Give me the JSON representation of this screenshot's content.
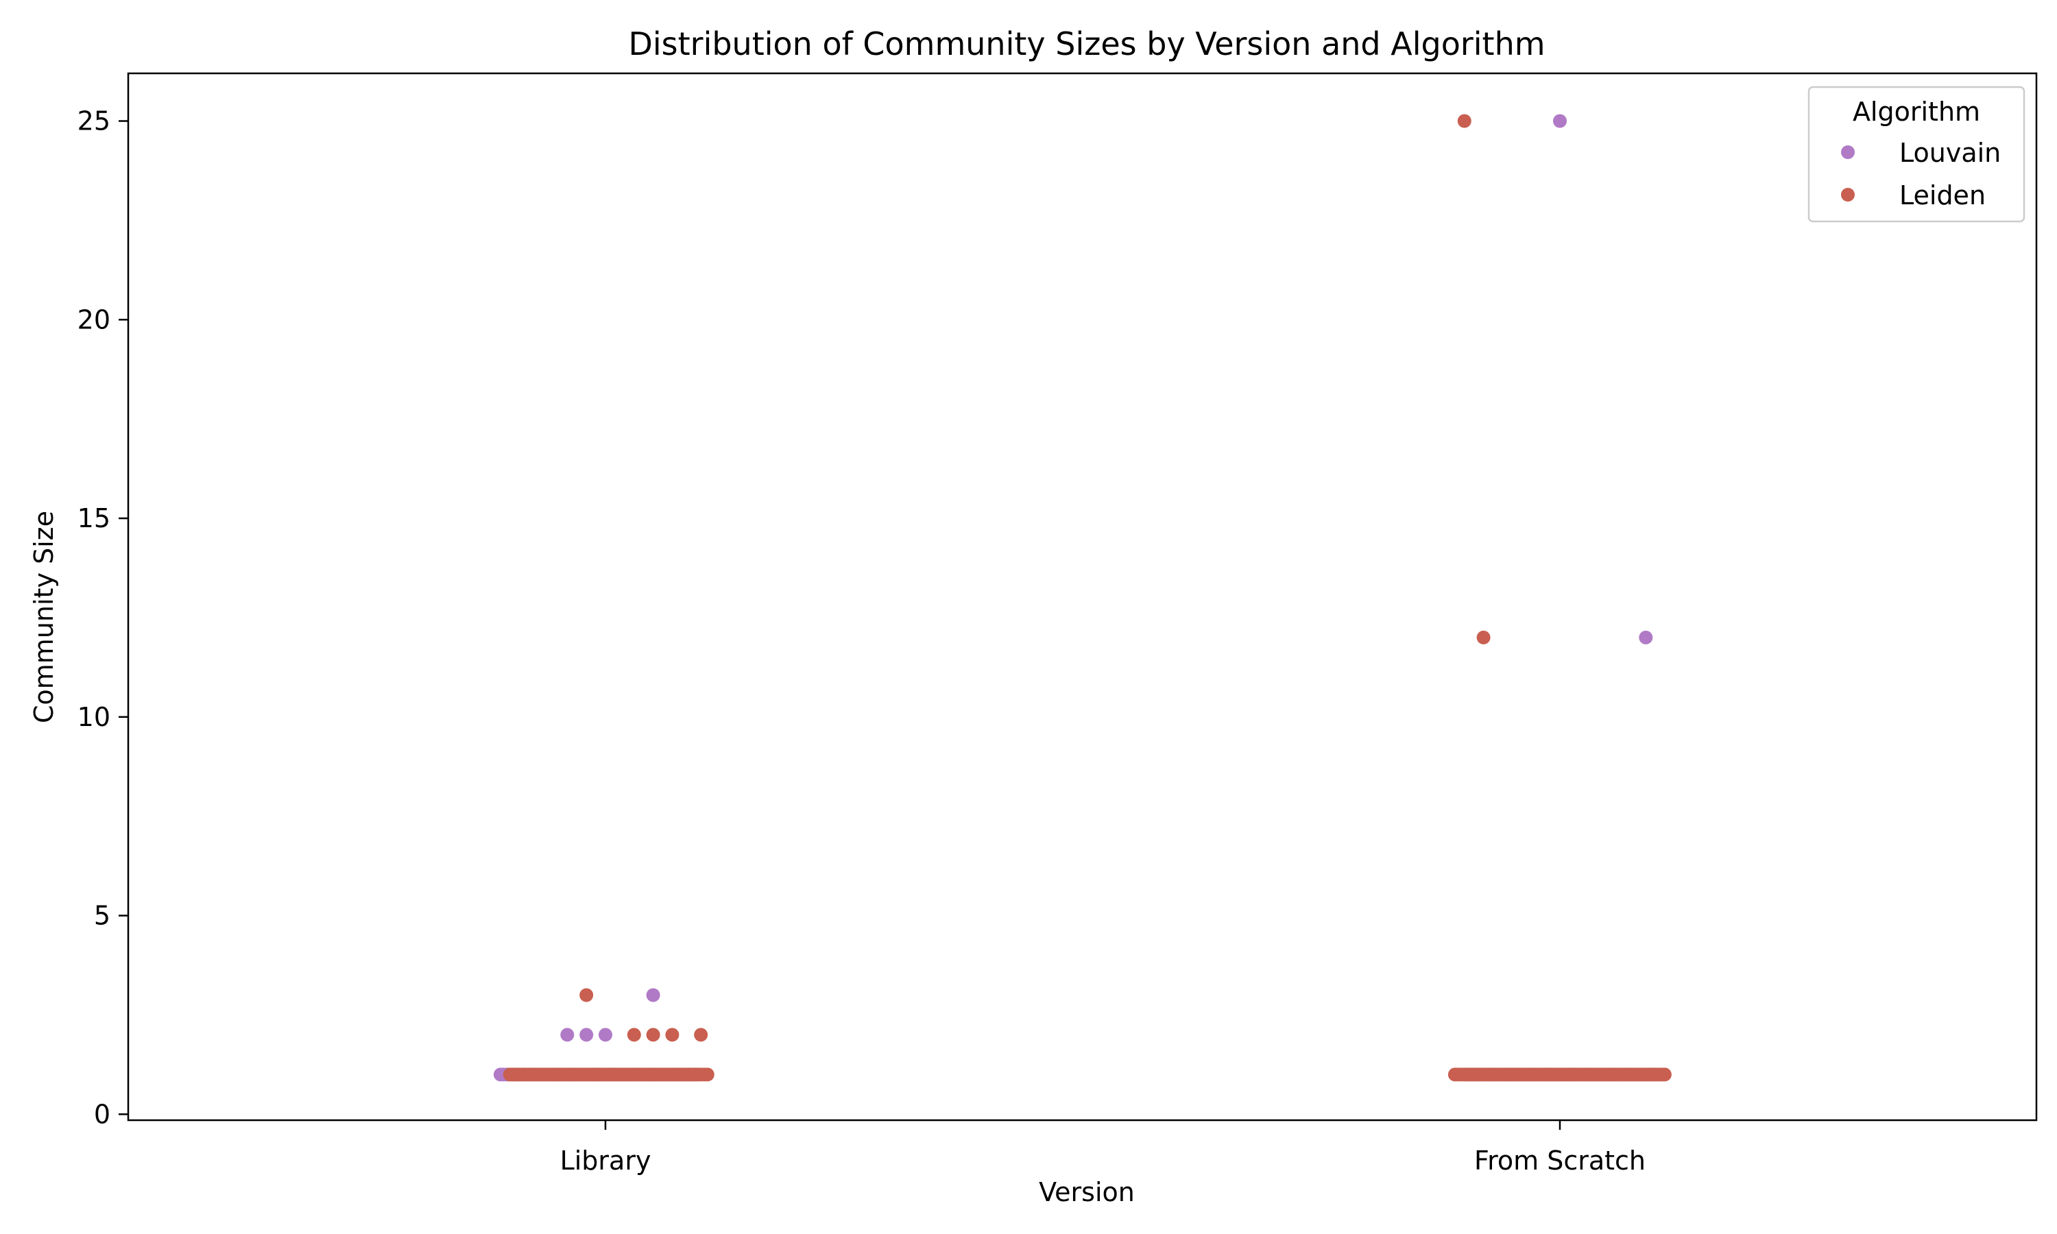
{
  "chart_data": {
    "type": "scatter",
    "title": "Distribution of Community Sizes by Version and Algorithm",
    "xlabel": "Version",
    "ylabel": "Community Size",
    "categories": [
      "Library",
      "From Scratch"
    ],
    "ylim": [
      -0.15,
      26.2
    ],
    "yticks": [
      0,
      5,
      10,
      15,
      20,
      25
    ],
    "grid": false,
    "legend": {
      "title": "Algorithm",
      "placement": "top-right",
      "entries": [
        {
          "name": "Louvain",
          "color": "#b07ac6"
        },
        {
          "name": "Leiden",
          "color": "#c95f50"
        }
      ]
    },
    "series": [
      {
        "name": "Louvain",
        "color": "#b07ac6",
        "points": [
          {
            "category": "Library",
            "jitter": 0.05,
            "value": 3
          },
          {
            "category": "Library",
            "jitter": -0.02,
            "value": 2
          },
          {
            "category": "Library",
            "jitter": 0.0,
            "value": 2
          },
          {
            "category": "Library",
            "jitter": -0.04,
            "value": 2
          },
          {
            "category": "From Scratch",
            "jitter": 0.0,
            "value": 25
          },
          {
            "category": "From Scratch",
            "jitter": 0.09,
            "value": 12
          }
        ],
        "ones_band": [
          {
            "category": "Library",
            "from": -0.11,
            "to": 0.1,
            "value": 1
          },
          {
            "category": "From Scratch",
            "from": -0.1,
            "to": 0.11,
            "value": 1
          }
        ]
      },
      {
        "name": "Leiden",
        "color": "#c95f50",
        "points": [
          {
            "category": "Library",
            "jitter": -0.02,
            "value": 3
          },
          {
            "category": "Library",
            "jitter": 0.03,
            "value": 2
          },
          {
            "category": "Library",
            "jitter": 0.05,
            "value": 2
          },
          {
            "category": "Library",
            "jitter": 0.07,
            "value": 2
          },
          {
            "category": "Library",
            "jitter": 0.1,
            "value": 2
          },
          {
            "category": "From Scratch",
            "jitter": -0.1,
            "value": 25
          },
          {
            "category": "From Scratch",
            "jitter": -0.08,
            "value": 12
          }
        ],
        "ones_band": [
          {
            "category": "Library",
            "from": -0.1,
            "to": 0.11,
            "value": 1
          },
          {
            "category": "From Scratch",
            "from": -0.11,
            "to": 0.11,
            "value": 1
          }
        ]
      }
    ]
  }
}
